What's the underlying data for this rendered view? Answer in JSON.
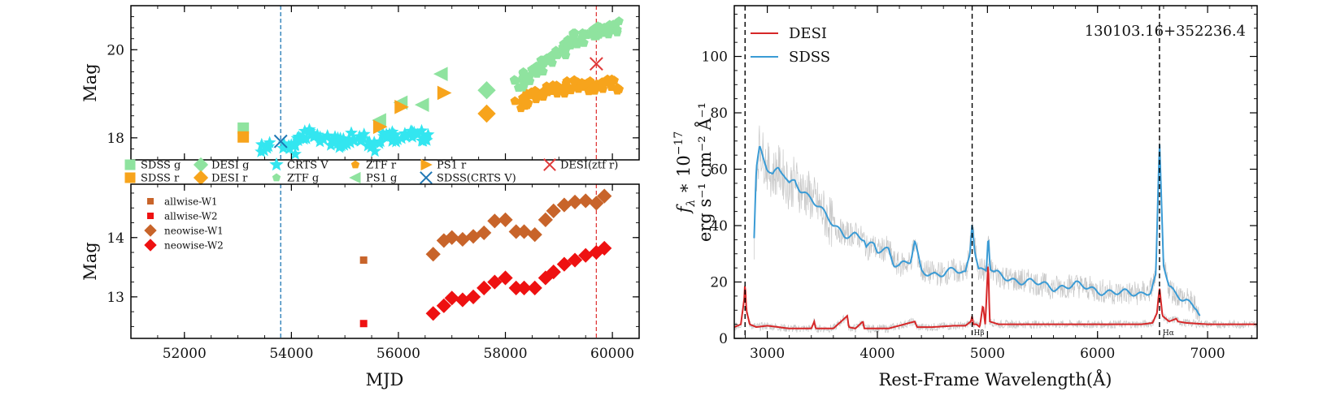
{
  "chart_data": [
    {
      "type": "scatter",
      "name": "optical_light_curve",
      "ylabel": "Mag",
      "xlim": [
        51000,
        60500
      ],
      "ylim": [
        21,
        17.5
      ],
      "yticks": [
        "18",
        "20"
      ],
      "vline_colors": [
        "#1f77b4",
        "#e03a3a"
      ],
      "vlines_x": [
        53800,
        59700
      ],
      "series": [
        {
          "name": "SDSS g",
          "marker": "square",
          "color": "#8fe39f",
          "points": [
            [
              53100,
              18.22
            ]
          ]
        },
        {
          "name": "SDSS r",
          "marker": "square",
          "color": "#f7a41c",
          "points": [
            [
              53100,
              18.02
            ]
          ]
        },
        {
          "name": "DESI g",
          "marker": "diamond",
          "color": "#8fe39f",
          "points": [
            [
              57650,
              19.08
            ]
          ]
        },
        {
          "name": "DESI r",
          "marker": "diamond",
          "color": "#f7a41c",
          "points": [
            [
              57650,
              18.55
            ]
          ]
        },
        {
          "name": "CRTS V",
          "marker": "star",
          "color": "#33e6f0",
          "points": [
            [
              53550,
              17.78
            ],
            [
              53950,
              17.75
            ],
            [
              54150,
              17.95
            ],
            [
              54350,
              18.08
            ],
            [
              54550,
              18.0
            ],
            [
              54800,
              17.9
            ],
            [
              55050,
              17.95
            ],
            [
              55250,
              18.02
            ],
            [
              55550,
              17.78
            ],
            [
              55800,
              17.98
            ],
            [
              56000,
              18.02
            ],
            [
              56250,
              18.12
            ],
            [
              56450,
              18.05
            ]
          ]
        },
        {
          "name": "ZTF r",
          "marker": "pentagon",
          "color": "#f7a41c",
          "points": [
            [
              58300,
              18.8
            ],
            [
              58450,
              18.88
            ],
            [
              58600,
              18.95
            ],
            [
              58800,
              19.05
            ],
            [
              59000,
              19.12
            ],
            [
              59200,
              19.2
            ],
            [
              59400,
              19.22
            ],
            [
              59600,
              19.18
            ],
            [
              59800,
              19.15
            ],
            [
              60000,
              19.2
            ]
          ]
        },
        {
          "name": "ZTF g",
          "marker": "pentagon",
          "color": "#8fe39f",
          "points": [
            [
              58300,
              19.25
            ],
            [
              58450,
              19.4
            ],
            [
              58600,
              19.55
            ],
            [
              58800,
              19.75
            ],
            [
              59000,
              19.95
            ],
            [
              59200,
              20.12
            ],
            [
              59400,
              20.25
            ],
            [
              59600,
              20.35
            ],
            [
              59800,
              20.45
            ],
            [
              60000,
              20.52
            ]
          ]
        },
        {
          "name": "PS1 g",
          "marker": "triangle-left",
          "color": "#8fe39f",
          "points": [
            [
              55650,
              18.4
            ],
            [
              56050,
              18.8
            ],
            [
              56450,
              18.75
            ],
            [
              56800,
              19.45
            ]
          ]
        },
        {
          "name": "PS1 r",
          "marker": "triangle-right",
          "color": "#f7a41c",
          "points": [
            [
              55650,
              18.25
            ],
            [
              56050,
              18.7
            ],
            [
              56850,
              19.02
            ]
          ]
        },
        {
          "name": "SDSS(CRTS V)",
          "marker": "x",
          "color": "#1f77b4",
          "points": [
            [
              53800,
              17.92
            ]
          ]
        },
        {
          "name": "DESI(ztf r)",
          "marker": "x",
          "color": "#e03a3a",
          "points": [
            [
              59700,
              19.68
            ]
          ]
        }
      ]
    },
    {
      "type": "scatter",
      "name": "wise_light_curve",
      "xlabel": "MJD",
      "ylabel": "Mag",
      "xlim": [
        51000,
        60500
      ],
      "ylim": [
        14.9,
        12.3
      ],
      "xticks": [
        "52000",
        "54000",
        "56000",
        "58000",
        "60000"
      ],
      "yticks": [
        "13",
        "14"
      ],
      "vlines_x": [
        53800,
        59700
      ],
      "series": [
        {
          "name": "allwise-W1",
          "marker": "square",
          "color": "#c8642a",
          "points": [
            [
              55350,
              13.62
            ]
          ]
        },
        {
          "name": "allwise-W2",
          "marker": "square",
          "color": "#ee1111",
          "points": [
            [
              55350,
              12.55
            ]
          ]
        },
        {
          "name": "neowise-W1",
          "marker": "diamond",
          "color": "#c8642a",
          "points": [
            [
              56650,
              13.72
            ],
            [
              56850,
              13.95
            ],
            [
              57000,
              14.0
            ],
            [
              57200,
              13.97
            ],
            [
              57400,
              14.02
            ],
            [
              57600,
              14.08
            ],
            [
              57800,
              14.28
            ],
            [
              58000,
              14.3
            ],
            [
              58200,
              14.1
            ],
            [
              58350,
              14.1
            ],
            [
              58550,
              14.05
            ],
            [
              58750,
              14.3
            ],
            [
              58900,
              14.45
            ],
            [
              59100,
              14.55
            ],
            [
              59300,
              14.6
            ],
            [
              59500,
              14.62
            ],
            [
              59700,
              14.58
            ],
            [
              59850,
              14.7
            ]
          ]
        },
        {
          "name": "neowise-W2",
          "marker": "diamond",
          "color": "#ee1111",
          "points": [
            [
              56650,
              12.72
            ],
            [
              56850,
              12.85
            ],
            [
              57000,
              12.98
            ],
            [
              57200,
              12.95
            ],
            [
              57400,
              13.0
            ],
            [
              57600,
              13.15
            ],
            [
              57800,
              13.25
            ],
            [
              58000,
              13.32
            ],
            [
              58200,
              13.15
            ],
            [
              58350,
              13.15
            ],
            [
              58550,
              13.15
            ],
            [
              58750,
              13.32
            ],
            [
              58900,
              13.42
            ],
            [
              59100,
              13.55
            ],
            [
              59300,
              13.62
            ],
            [
              59500,
              13.7
            ],
            [
              59700,
              13.75
            ],
            [
              59850,
              13.82
            ]
          ]
        }
      ]
    },
    {
      "type": "line",
      "name": "spectrum",
      "title": "130103.16+352236.4",
      "xlabel": "Rest-Frame Wavelength(Å)",
      "ylabel_line1": "f",
      "ylabel_sub": "λ",
      "ylabel_rest": " ∗ 10",
      "ylabel_exp": "−17",
      "ylabel_line2": "erg s⁻¹ cm⁻² Å⁻¹",
      "xlim": [
        2700,
        7450
      ],
      "ylim": [
        0,
        118
      ],
      "xticks": [
        "3000",
        "4000",
        "5000",
        "6000",
        "7000"
      ],
      "yticks": [
        "0",
        "20",
        "40",
        "60",
        "80",
        "100"
      ],
      "vlines_x": [
        2798,
        4861,
        6563
      ],
      "line_labels": [
        "Hβ",
        "Hα"
      ],
      "series": [
        {
          "name": "DESI",
          "color": "#d62728",
          "x": [
            2700,
            2760,
            2790,
            2798,
            2810,
            2840,
            2900,
            3000,
            3200,
            3400,
            3426,
            3440,
            3600,
            3727,
            3740,
            3800,
            3869,
            3880,
            4000,
            4100,
            4340,
            4360,
            4500,
            4700,
            4800,
            4850,
            4861,
            4872,
            4900,
            4930,
            4959,
            4980,
            5007,
            5020,
            5100,
            5300,
            5500,
            6000,
            6400,
            6500,
            6540,
            6563,
            6590,
            6650,
            6716,
            6730,
            6800,
            7000,
            7200,
            7450
          ],
          "y": [
            4,
            5,
            14,
            20,
            10,
            5,
            4,
            4.5,
            3.5,
            3.5,
            6,
            3.5,
            3.5,
            8,
            4,
            3.5,
            6,
            3.5,
            3.5,
            3.5,
            6,
            4,
            4,
            4.5,
            4.5,
            6,
            8,
            5,
            5,
            4,
            12,
            5,
            28,
            6,
            5,
            5,
            5,
            5,
            5,
            5.5,
            9,
            18,
            8,
            6,
            7,
            6,
            5.5,
            5,
            5,
            5
          ]
        },
        {
          "name": "SDSS",
          "color": "#3a9bd5",
          "x": [
            2880,
            2900,
            2930,
            2960,
            3000,
            3050,
            3100,
            3150,
            3200,
            3250,
            3300,
            3400,
            3500,
            3600,
            3700,
            3800,
            3880,
            3900,
            3970,
            4000,
            4100,
            4150,
            4200,
            4300,
            4340,
            4380,
            4400,
            4500,
            4600,
            4700,
            4800,
            4840,
            4861,
            4885,
            4920,
            4960,
            4990,
            5007,
            5025,
            5060,
            5200,
            5400,
            5600,
            5800,
            6000,
            6200,
            6400,
            6480,
            6530,
            6563,
            6600,
            6650,
            6700,
            6800,
            6900,
            6930
          ],
          "y": [
            36,
            60,
            68,
            65,
            61,
            58,
            60,
            58,
            54,
            56,
            53,
            50,
            45,
            40,
            37,
            37,
            35,
            32,
            33,
            31,
            32,
            27,
            26,
            27,
            34,
            27,
            24,
            23,
            23,
            24,
            23,
            30,
            42,
            32,
            25,
            24,
            24,
            37,
            25,
            23,
            21,
            20,
            18,
            19,
            17,
            16,
            16,
            17,
            22,
            69,
            26,
            18,
            16,
            14,
            11,
            8
          ]
        }
      ]
    }
  ]
}
